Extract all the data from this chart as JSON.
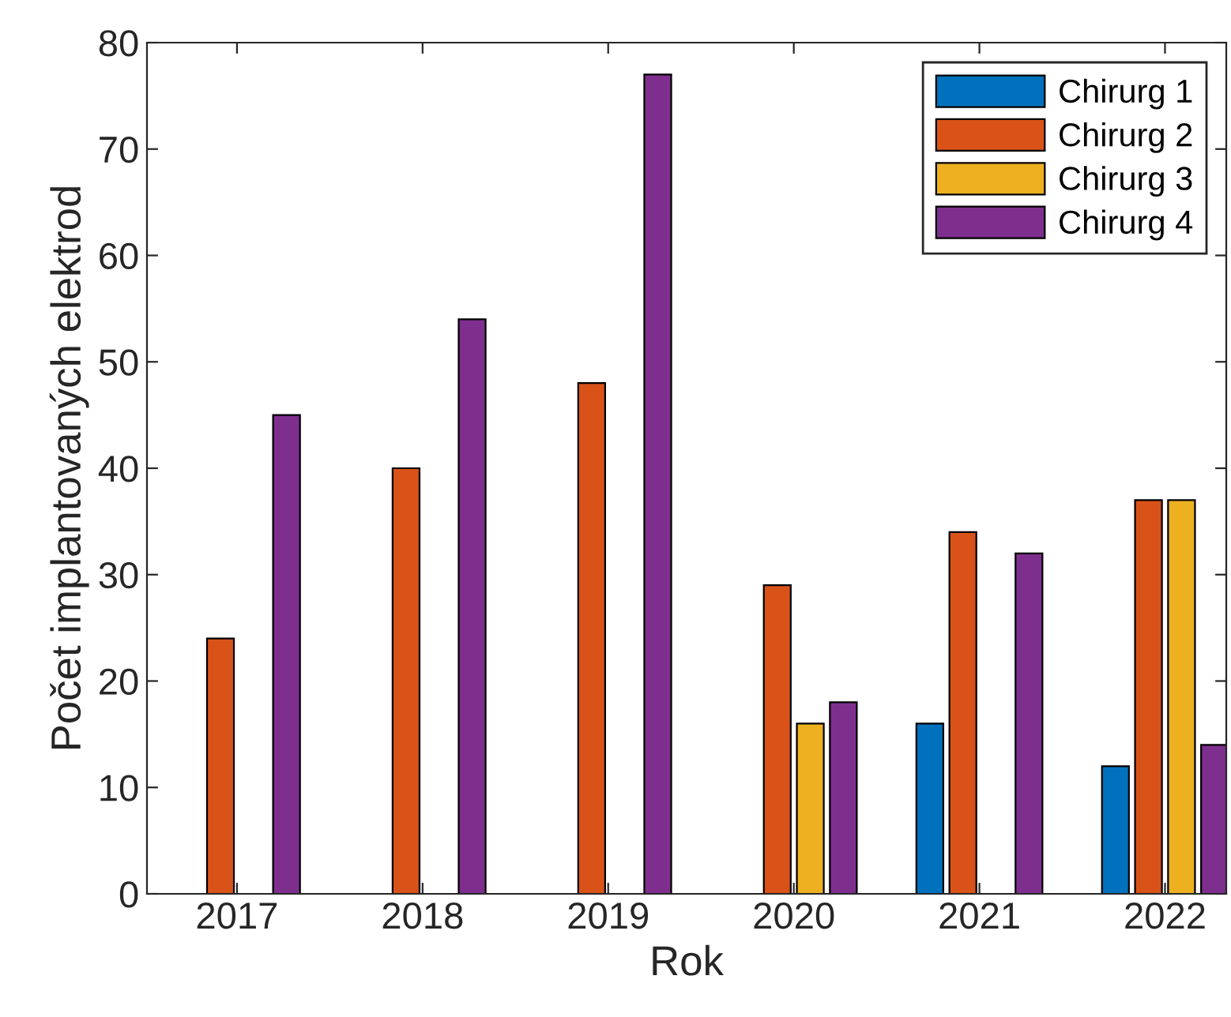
{
  "chart_data": {
    "type": "bar",
    "xlabel": "Rok",
    "ylabel": "Počet implantovaných elektrod",
    "categories": [
      "2017",
      "2018",
      "2019",
      "2020",
      "2021",
      "2022"
    ],
    "series": [
      {
        "name": "Chirurg 1",
        "color": "#0072bd",
        "values": [
          null,
          null,
          null,
          null,
          16,
          12
        ]
      },
      {
        "name": "Chirurg 2",
        "color": "#d95319",
        "values": [
          24,
          40,
          48,
          29,
          34,
          37
        ]
      },
      {
        "name": "Chirurg 3",
        "color": "#edb120",
        "values": [
          null,
          null,
          null,
          16,
          null,
          37
        ]
      },
      {
        "name": "Chirurg 4",
        "color": "#7e2f8e",
        "values": [
          45,
          54,
          77,
          18,
          32,
          14
        ]
      }
    ],
    "ylim": [
      0,
      80
    ],
    "yticks": [
      0,
      10,
      20,
      30,
      40,
      50,
      60,
      70,
      80
    ],
    "grid": false,
    "legend": "top right"
  }
}
